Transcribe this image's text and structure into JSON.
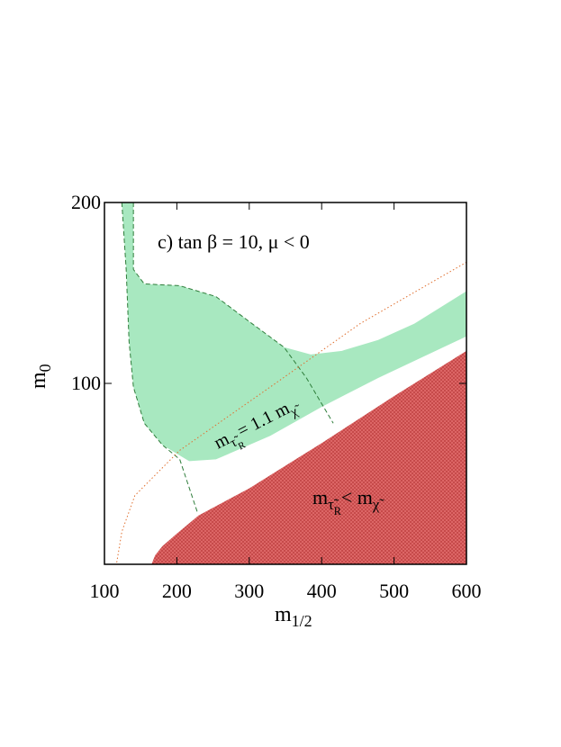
{
  "chart_data": {
    "type": "region",
    "title": "c) tan β = 10, μ < 0",
    "x_label": [
      [
        "m",
        0
      ],
      [
        "1/2",
        1
      ]
    ],
    "y_label": [
      [
        "m",
        0
      ],
      [
        "0",
        1
      ]
    ],
    "xlim": [
      100,
      600
    ],
    "ylim": [
      0,
      200
    ],
    "xticks": [
      100,
      200,
      300,
      400,
      500,
      600
    ],
    "yticks": [
      100,
      200
    ],
    "regions": [
      {
        "color": "#a8e8c0",
        "hatch": false,
        "x": [
          140,
          140,
          155,
          204,
          254,
          304,
          348,
          385,
          428,
          478,
          528,
          600,
          600,
          478,
          400,
          329,
          254,
          217,
          180,
          155,
          140,
          134,
          130,
          124
        ],
        "y": [
          200,
          163,
          155,
          154,
          148,
          133,
          120,
          116,
          118,
          124,
          133,
          151,
          126,
          103,
          87,
          71,
          58,
          57,
          66,
          78,
          98,
          123,
          163,
          200
        ]
      },
      {
        "color": "#e06a6a",
        "hatch": true,
        "x": [
          165,
          170,
          180,
          200,
          230,
          300,
          400,
          500,
          600,
          600
        ],
        "y": [
          0,
          5,
          10,
          17,
          27,
          42,
          67,
          93,
          118,
          0
        ]
      }
    ],
    "curves": [
      {
        "color": "#2e7d3a",
        "style": "dashed",
        "x": [
          140,
          140,
          155,
          204,
          254,
          304,
          348,
          379,
          416
        ],
        "y": [
          200,
          163,
          155,
          154,
          148,
          133,
          120,
          103,
          78
        ]
      },
      {
        "color": "#2e7d3a",
        "style": "dashed",
        "x": [
          124,
          130,
          134,
          140,
          155,
          180,
          204,
          229
        ],
        "y": [
          200,
          163,
          123,
          98,
          78,
          66,
          58,
          28
        ]
      },
      {
        "color": "#e07030",
        "style": "dotted",
        "x": [
          117,
          124,
          142,
          204,
          329,
          453,
          600
        ],
        "y": [
          1,
          18,
          38,
          63,
          98,
          133,
          167
        ]
      }
    ],
    "annotations": [
      {
        "parts": [
          [
            "m",
            0
          ],
          [
            "τ̃",
            1
          ],
          [
            "R",
            2
          ],
          [
            "= 1.1 m",
            0
          ],
          [
            "χ̃",
            1
          ]
        ]
      },
      {
        "parts": [
          [
            "m",
            0
          ],
          [
            "τ̃",
            1
          ],
          [
            "R",
            2
          ],
          [
            "< m",
            0
          ],
          [
            "χ̃",
            1
          ]
        ]
      }
    ]
  }
}
